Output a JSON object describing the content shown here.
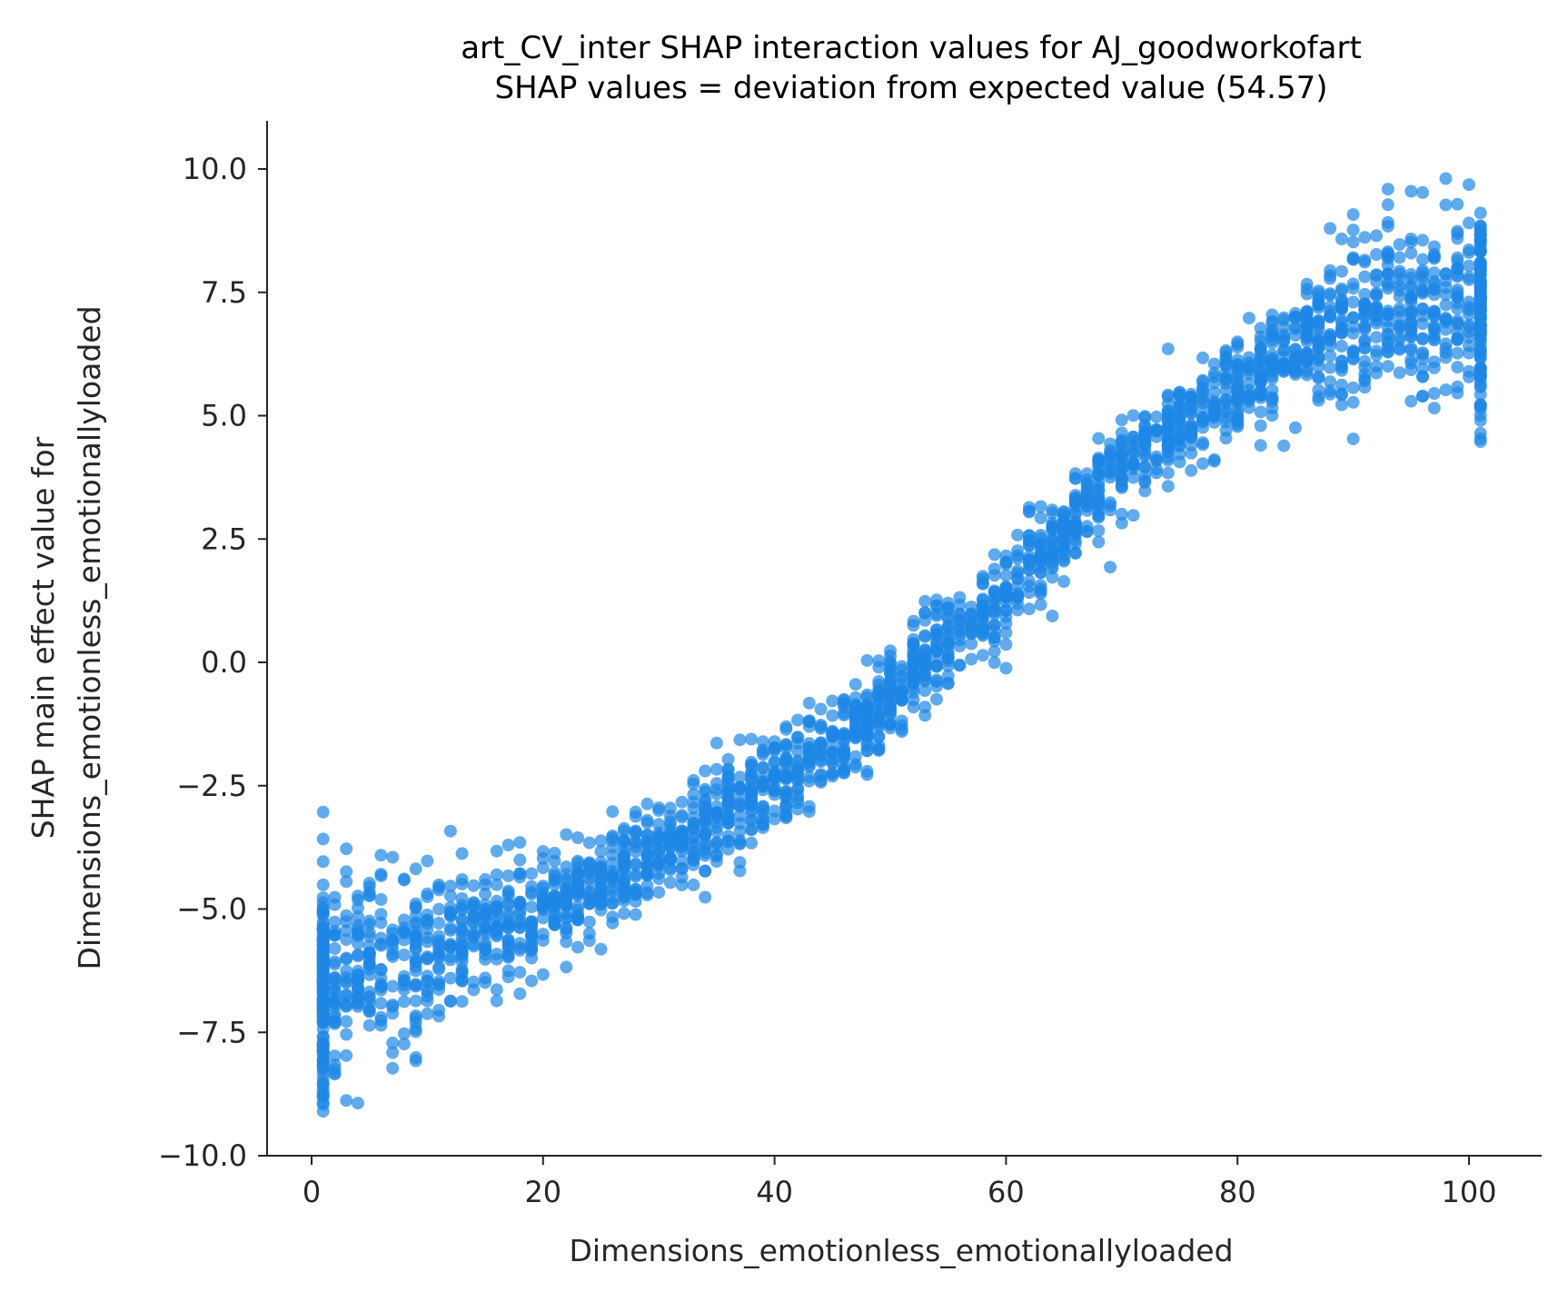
{
  "chart_data": {
    "type": "scatter",
    "title": "art_CV_inter SHAP interaction values for AJ_goodworkofart",
    "subtitle": "SHAP values = deviation from expected value (54.57)",
    "xlabel": "Dimensions_emotionless_emotionallyloaded",
    "ylabel_line1": "SHAP main effect value for",
    "ylabel_line2": "Dimensions_emotionless_emotionallyloaded",
    "xlim": [
      -4,
      106
    ],
    "ylim": [
      -10,
      11
    ],
    "x_ticks": [
      0,
      20,
      40,
      60,
      80,
      100
    ],
    "x_tick_labels": [
      "0",
      "20",
      "40",
      "60",
      "80",
      "100"
    ],
    "y_ticks": [
      10,
      7.5,
      5,
      2.5,
      0,
      -2.5,
      -5,
      -7.5,
      -10
    ],
    "y_tick_labels": [
      "10.0",
      "7.5",
      "5.0",
      "2.5",
      "0.0",
      "−2.5",
      "−5.0",
      "−7.5",
      "−10.0"
    ],
    "grid": false,
    "point_color": "#1e88e5",
    "trend_knots": {
      "x": [
        1,
        10,
        20,
        30,
        40,
        48,
        52,
        60,
        70,
        80,
        90,
        101
      ],
      "y": [
        -6.6,
        -6.0,
        -5.0,
        -3.9,
        -2.4,
        -1.2,
        -0.2,
        1.4,
        4.0,
        5.6,
        7.0,
        7.2
      ]
    },
    "spread_knots": {
      "x": [
        1,
        10,
        20,
        40,
        60,
        80,
        90,
        101
      ],
      "y": [
        1.2,
        0.9,
        0.5,
        0.45,
        0.45,
        0.45,
        0.8,
        1.1
      ]
    },
    "n_points": 2600
  }
}
